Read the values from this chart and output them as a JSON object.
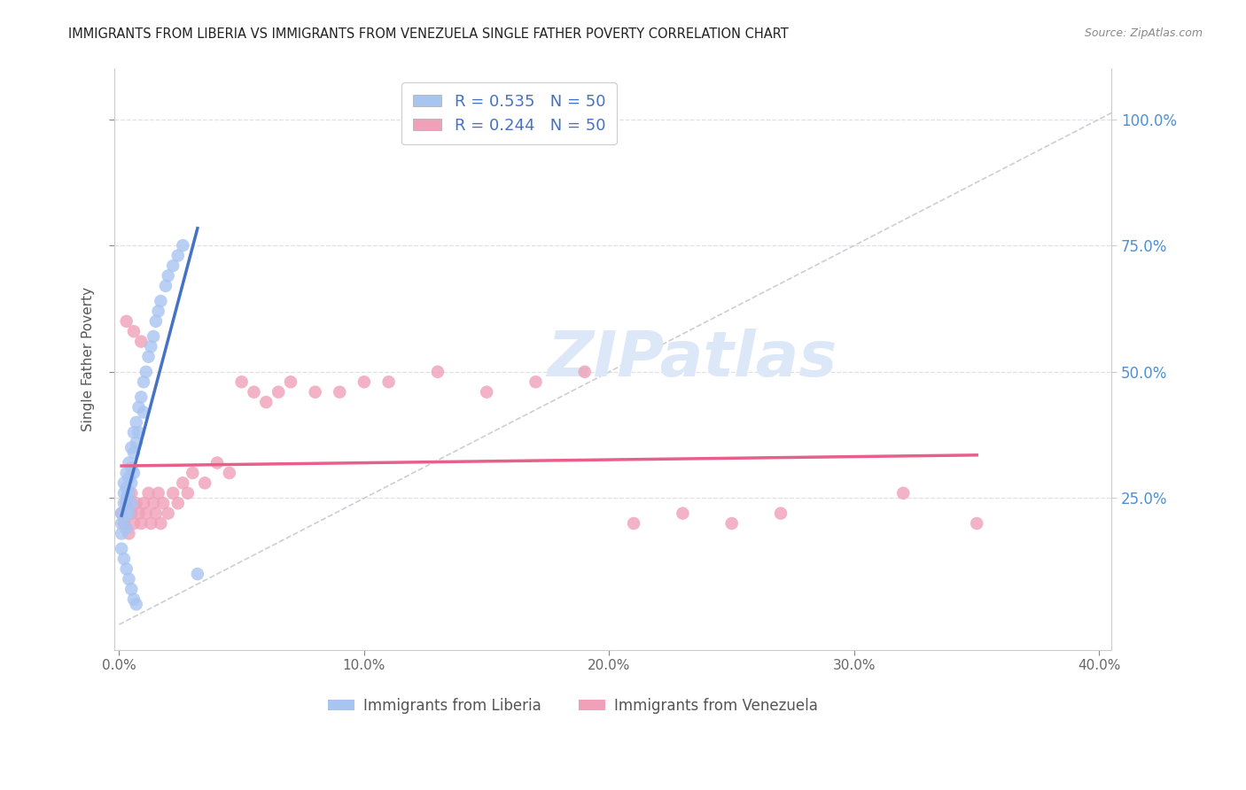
{
  "title": "IMMIGRANTS FROM LIBERIA VS IMMIGRANTS FROM VENEZUELA SINGLE FATHER POVERTY CORRELATION CHART",
  "source": "Source: ZipAtlas.com",
  "ylabel": "Single Father Poverty",
  "xlim": [
    -0.002,
    0.405
  ],
  "ylim": [
    -0.05,
    1.1
  ],
  "xtick_labels": [
    "0.0%",
    "10.0%",
    "20.0%",
    "30.0%",
    "40.0%"
  ],
  "xtick_values": [
    0.0,
    0.1,
    0.2,
    0.3,
    0.4
  ],
  "ytick_labels": [
    "25.0%",
    "50.0%",
    "75.0%",
    "100.0%"
  ],
  "ytick_values": [
    0.25,
    0.5,
    0.75,
    1.0
  ],
  "color_liberia": "#a8c4f0",
  "color_venezuela": "#f0a0b8",
  "color_line_liberia": "#4472c4",
  "color_line_venezuela": "#e8608a",
  "color_diagonal": "#c8c8d0",
  "R_liberia": 0.535,
  "N_liberia": 50,
  "R_venezuela": 0.244,
  "N_venezuela": 50,
  "legend_label_liberia": "Immigrants from Liberia",
  "legend_label_venezuela": "Immigrants from Venezuela",
  "watermark": "ZIPatlas",
  "background_color": "#ffffff",
  "grid_color": "#e0e0e8",
  "liberia_x": [
    0.001,
    0.001,
    0.001,
    0.002,
    0.002,
    0.002,
    0.002,
    0.003,
    0.003,
    0.003,
    0.003,
    0.003,
    0.004,
    0.004,
    0.004,
    0.004,
    0.005,
    0.005,
    0.005,
    0.005,
    0.006,
    0.006,
    0.006,
    0.007,
    0.007,
    0.008,
    0.008,
    0.009,
    0.01,
    0.01,
    0.011,
    0.012,
    0.013,
    0.014,
    0.015,
    0.016,
    0.017,
    0.019,
    0.02,
    0.022,
    0.024,
    0.026,
    0.001,
    0.002,
    0.003,
    0.004,
    0.005,
    0.006,
    0.007,
    0.032
  ],
  "liberia_y": [
    0.22,
    0.2,
    0.18,
    0.28,
    0.26,
    0.24,
    0.21,
    0.3,
    0.27,
    0.25,
    0.23,
    0.19,
    0.32,
    0.29,
    0.26,
    0.22,
    0.35,
    0.31,
    0.28,
    0.24,
    0.38,
    0.34,
    0.3,
    0.4,
    0.36,
    0.43,
    0.38,
    0.45,
    0.48,
    0.42,
    0.5,
    0.53,
    0.55,
    0.57,
    0.6,
    0.62,
    0.64,
    0.67,
    0.69,
    0.71,
    0.73,
    0.75,
    0.15,
    0.13,
    0.11,
    0.09,
    0.07,
    0.05,
    0.04,
    0.1
  ],
  "venezuela_x": [
    0.001,
    0.002,
    0.003,
    0.004,
    0.005,
    0.005,
    0.006,
    0.007,
    0.008,
    0.009,
    0.01,
    0.011,
    0.012,
    0.013,
    0.014,
    0.015,
    0.016,
    0.017,
    0.018,
    0.02,
    0.022,
    0.024,
    0.026,
    0.028,
    0.03,
    0.035,
    0.04,
    0.045,
    0.05,
    0.055,
    0.06,
    0.065,
    0.07,
    0.08,
    0.09,
    0.1,
    0.11,
    0.13,
    0.15,
    0.17,
    0.19,
    0.21,
    0.23,
    0.25,
    0.27,
    0.003,
    0.006,
    0.009,
    0.32,
    0.35
  ],
  "venezuela_y": [
    0.22,
    0.2,
    0.24,
    0.18,
    0.22,
    0.26,
    0.2,
    0.24,
    0.22,
    0.2,
    0.24,
    0.22,
    0.26,
    0.2,
    0.24,
    0.22,
    0.26,
    0.2,
    0.24,
    0.22,
    0.26,
    0.24,
    0.28,
    0.26,
    0.3,
    0.28,
    0.32,
    0.3,
    0.48,
    0.46,
    0.44,
    0.46,
    0.48,
    0.46,
    0.46,
    0.48,
    0.48,
    0.5,
    0.46,
    0.48,
    0.5,
    0.2,
    0.22,
    0.2,
    0.22,
    0.6,
    0.58,
    0.56,
    0.26,
    0.2
  ]
}
